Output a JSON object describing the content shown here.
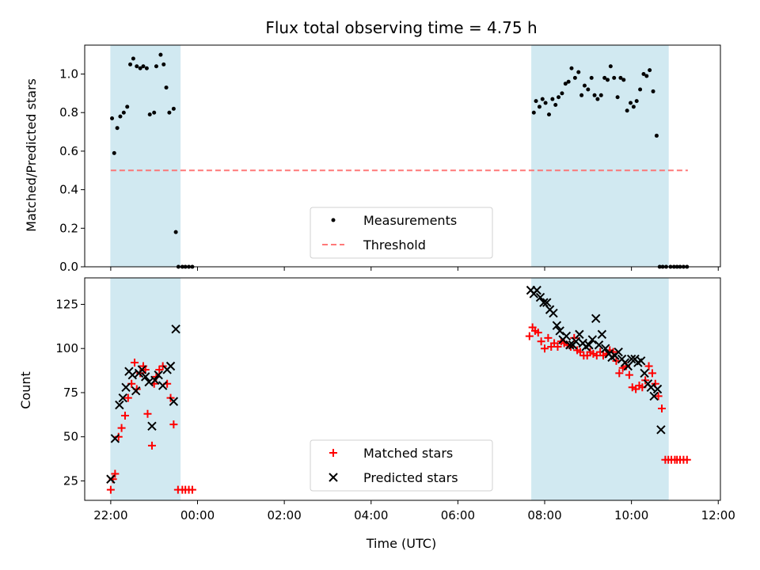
{
  "title": "Flux total observing time = 4.75 h",
  "xlabel": "Time (UTC)",
  "colors": {
    "span": "#add8e6",
    "measurement": "#000000",
    "threshold": "#ff6b6b",
    "matched": "#ff0000",
    "predicted": "#000000"
  },
  "chart_data": [
    {
      "type": "scatter",
      "panel": "top",
      "ylabel": "Matched/Predicted stars",
      "ylim": [
        0,
        1.15
      ],
      "yticks": [
        0.0,
        0.2,
        0.4,
        0.6,
        0.8,
        1.0
      ],
      "ytick_labels": [
        "0.0",
        "0.2",
        "0.4",
        "0.6",
        "0.8",
        "1.0"
      ],
      "x_unit": "hours since 22:00 UTC",
      "xlim": [
        -0.6,
        14.05
      ],
      "xticks": [
        0,
        2,
        4,
        6,
        8,
        10,
        12,
        14
      ],
      "xtick_labels": [
        "22:00",
        "00:00",
        "02:00",
        "04:00",
        "06:00",
        "08:00",
        "10:00",
        "12:00"
      ],
      "observing_spans": [
        [
          0.0,
          1.6
        ],
        [
          9.7,
          12.85
        ]
      ],
      "threshold": {
        "name": "Threshold",
        "value": 0.5,
        "x": [
          0.0,
          13.3
        ]
      },
      "legend": {
        "placement": "lower center",
        "entries": [
          "Measurements",
          "Threshold"
        ]
      },
      "series": [
        {
          "name": "Measurements",
          "x": [
            0.03,
            0.08,
            0.15,
            0.22,
            0.3,
            0.38,
            0.45,
            0.52,
            0.6,
            0.68,
            0.75,
            0.83,
            0.9,
            1.0,
            1.05,
            1.15,
            1.22,
            1.28,
            1.35,
            1.45,
            1.5,
            1.56,
            1.65,
            1.72,
            1.8,
            1.88,
            9.75,
            9.8,
            9.88,
            9.95,
            10.02,
            10.1,
            10.18,
            10.25,
            10.32,
            10.4,
            10.48,
            10.55,
            10.62,
            10.7,
            10.78,
            10.85,
            10.92,
            11.0,
            11.08,
            11.15,
            11.22,
            11.3,
            11.38,
            11.45,
            11.52,
            11.6,
            11.68,
            11.75,
            11.82,
            11.9,
            11.98,
            12.05,
            12.12,
            12.2,
            12.28,
            12.35,
            12.42,
            12.5,
            12.58,
            12.65,
            12.72,
            12.8,
            12.9,
            12.98,
            13.05,
            13.12,
            13.2,
            13.28
          ],
          "y": [
            0.77,
            0.59,
            0.72,
            0.78,
            0.8,
            0.83,
            1.05,
            1.08,
            1.04,
            1.03,
            1.04,
            1.03,
            0.79,
            0.8,
            1.04,
            1.1,
            1.05,
            0.93,
            0.8,
            0.82,
            0.18,
            0.0,
            0.0,
            0.0,
            0.0,
            0.0,
            0.8,
            0.86,
            0.83,
            0.87,
            0.85,
            0.79,
            0.87,
            0.84,
            0.88,
            0.9,
            0.95,
            0.96,
            1.03,
            0.98,
            1.01,
            0.89,
            0.94,
            0.92,
            0.98,
            0.89,
            0.87,
            0.89,
            0.98,
            0.97,
            1.04,
            0.98,
            0.88,
            0.98,
            0.97,
            0.81,
            0.85,
            0.83,
            0.86,
            0.92,
            1.0,
            0.99,
            1.02,
            0.91,
            0.68,
            0.0,
            0.0,
            0.0,
            0.0,
            0.0,
            0.0,
            0.0,
            0.0,
            0.0
          ]
        }
      ]
    },
    {
      "type": "scatter",
      "panel": "bottom",
      "ylabel": "Count",
      "ylim": [
        14,
        140
      ],
      "yticks": [
        25,
        50,
        75,
        100,
        125
      ],
      "ytick_labels": [
        "25",
        "50",
        "75",
        "100",
        "125"
      ],
      "x_unit": "hours since 22:00 UTC",
      "xlim": [
        -0.6,
        14.05
      ],
      "xticks": [
        0,
        2,
        4,
        6,
        8,
        10,
        12,
        14
      ],
      "xtick_labels": [
        "22:00",
        "00:00",
        "02:00",
        "04:00",
        "06:00",
        "08:00",
        "10:00",
        "12:00"
      ],
      "observing_spans": [
        [
          0.0,
          1.6
        ],
        [
          9.7,
          12.85
        ]
      ],
      "legend": {
        "placement": "lower center",
        "entries": [
          "Matched stars",
          "Predicted stars"
        ]
      },
      "series": [
        {
          "name": "Matched stars",
          "marker": "plus",
          "x": [
            0.0,
            0.05,
            0.1,
            0.18,
            0.25,
            0.33,
            0.4,
            0.48,
            0.55,
            0.6,
            0.68,
            0.75,
            0.8,
            0.85,
            0.95,
            1.0,
            1.05,
            1.12,
            1.2,
            1.3,
            1.38,
            1.45,
            1.55,
            1.65,
            1.72,
            1.8,
            1.88,
            9.65,
            9.72,
            9.78,
            9.85,
            9.92,
            10.0,
            10.08,
            10.15,
            10.22,
            10.3,
            10.38,
            10.45,
            10.52,
            10.6,
            10.68,
            10.75,
            10.82,
            10.9,
            10.98,
            11.05,
            11.12,
            11.2,
            11.28,
            11.35,
            11.42,
            11.5,
            11.58,
            11.65,
            11.72,
            11.8,
            11.88,
            11.95,
            12.02,
            12.1,
            12.18,
            12.25,
            12.32,
            12.4,
            12.48,
            12.55,
            12.62,
            12.7,
            12.78,
            12.85,
            12.92,
            13.0,
            13.05,
            13.12,
            13.2,
            13.28
          ],
          "y": [
            20,
            26,
            29,
            50,
            55,
            62,
            72,
            80,
            92,
            77,
            86,
            90,
            88,
            63,
            45,
            80,
            84,
            88,
            90,
            80,
            72,
            57,
            20,
            20,
            20,
            20,
            20,
            107,
            112,
            110,
            109,
            104,
            100,
            106,
            101,
            103,
            101,
            104,
            103,
            102,
            101,
            106,
            99,
            98,
            96,
            96,
            98,
            97,
            96,
            98,
            96,
            97,
            99,
            98,
            93,
            86,
            89,
            90,
            85,
            78,
            77,
            79,
            78,
            82,
            90,
            86,
            80,
            73,
            66,
            37,
            37,
            37,
            37,
            37,
            37,
            37,
            37
          ]
        },
        {
          "name": "Predicted stars",
          "marker": "x",
          "x": [
            0.0,
            0.1,
            0.2,
            0.28,
            0.35,
            0.42,
            0.5,
            0.58,
            0.65,
            0.72,
            0.8,
            0.88,
            0.95,
            1.02,
            1.1,
            1.2,
            1.3,
            1.38,
            1.45,
            1.5,
            9.68,
            9.75,
            9.82,
            9.9,
            9.98,
            10.05,
            10.12,
            10.2,
            10.28,
            10.35,
            10.42,
            10.5,
            10.58,
            10.65,
            10.72,
            10.8,
            10.88,
            10.95,
            11.02,
            11.1,
            11.18,
            11.25,
            11.32,
            11.4,
            11.48,
            11.55,
            11.62,
            11.7,
            11.78,
            11.85,
            11.92,
            12.0,
            12.08,
            12.15,
            12.22,
            12.3,
            12.38,
            12.45,
            12.52,
            12.6,
            12.68
          ],
          "y": [
            26,
            49,
            68,
            72,
            78,
            87,
            85,
            76,
            86,
            88,
            84,
            81,
            56,
            82,
            85,
            79,
            88,
            90,
            70,
            111,
            133,
            131,
            133,
            129,
            126,
            126,
            122,
            120,
            113,
            110,
            105,
            107,
            102,
            102,
            104,
            108,
            103,
            101,
            102,
            105,
            117,
            102,
            108,
            100,
            97,
            95,
            96,
            98,
            94,
            92,
            90,
            94,
            94,
            92,
            93,
            86,
            80,
            78,
            73,
            77,
            54
          ]
        }
      ]
    }
  ]
}
